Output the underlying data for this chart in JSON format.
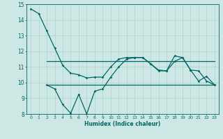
{
  "xlabel": "Humidex (Indice chaleur)",
  "bg_color": "#cde8e4",
  "grid_color": "#b0d8d2",
  "line_color": "#006666",
  "xlim": [
    -0.5,
    23.5
  ],
  "ylim": [
    8,
    15
  ],
  "xticks": [
    0,
    1,
    2,
    3,
    4,
    5,
    6,
    7,
    8,
    9,
    10,
    11,
    12,
    13,
    14,
    15,
    16,
    17,
    18,
    19,
    20,
    21,
    22,
    23
  ],
  "yticks": [
    8,
    9,
    10,
    11,
    12,
    13,
    14,
    15
  ],
  "line1_x": [
    0,
    1,
    2,
    3,
    4,
    5,
    6,
    7,
    8,
    9,
    10,
    11,
    12,
    13,
    14,
    15,
    16,
    17,
    18,
    19,
    20,
    21,
    22,
    23
  ],
  "line1_y": [
    14.7,
    14.4,
    13.3,
    12.2,
    11.1,
    10.6,
    10.5,
    10.3,
    10.35,
    10.35,
    11.0,
    11.5,
    11.6,
    11.6,
    11.6,
    11.2,
    10.8,
    10.75,
    11.7,
    11.6,
    10.8,
    10.1,
    10.4,
    9.85
  ],
  "line2_x": [
    2,
    3,
    4,
    5,
    6,
    7,
    8,
    9,
    10,
    11,
    12,
    13,
    14,
    15,
    16,
    17,
    18,
    19,
    20,
    21,
    22,
    23
  ],
  "line2_y": [
    11.35,
    11.35,
    11.35,
    11.35,
    11.35,
    11.35,
    11.35,
    11.35,
    11.35,
    11.35,
    11.35,
    11.35,
    11.35,
    11.35,
    11.35,
    11.35,
    11.35,
    11.35,
    11.35,
    11.35,
    11.35,
    11.35
  ],
  "line3_x": [
    2,
    3,
    4,
    5,
    6,
    7,
    8,
    9,
    10,
    11,
    12,
    13,
    14,
    15,
    16,
    17,
    18,
    19,
    20,
    21,
    22,
    23
  ],
  "line3_y": [
    9.85,
    9.6,
    8.6,
    8.05,
    9.25,
    8.0,
    9.45,
    9.6,
    10.35,
    11.0,
    11.5,
    11.6,
    11.6,
    11.2,
    10.75,
    10.75,
    11.35,
    11.6,
    10.8,
    10.75,
    10.1,
    9.85
  ],
  "line4_x": [
    2,
    3,
    4,
    5,
    6,
    7,
    8,
    9,
    10,
    11,
    12,
    13,
    14,
    15,
    16,
    17,
    18,
    19,
    20,
    21,
    22,
    23
  ],
  "line4_y": [
    9.85,
    9.85,
    9.85,
    9.85,
    9.85,
    9.85,
    9.85,
    9.85,
    9.85,
    9.85,
    9.85,
    9.85,
    9.85,
    9.85,
    9.85,
    9.85,
    9.85,
    9.85,
    9.85,
    9.85,
    9.85,
    9.85
  ]
}
